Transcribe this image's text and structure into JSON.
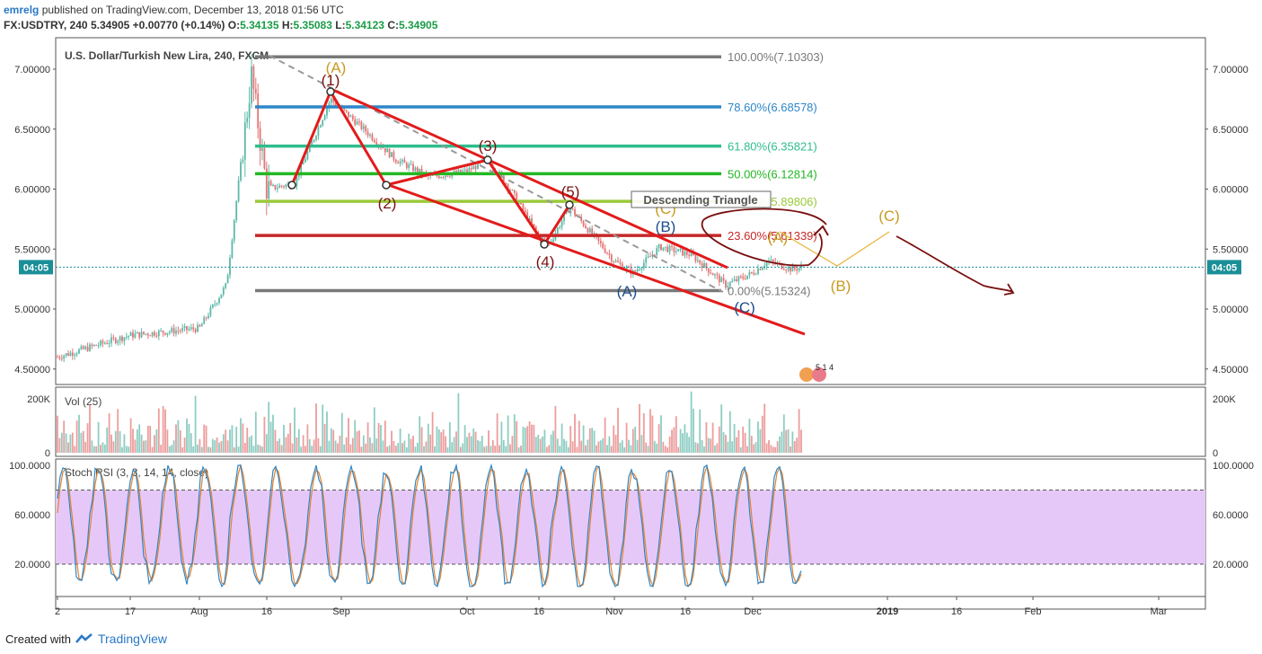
{
  "header": {
    "user": "emrelg",
    "published_text": "published on TradingView.com, December 13, 2018 01:56 UTC",
    "symbol": "FX:USDTRY, 240",
    "price": "5.34905",
    "change": "+0.00770 (+0.14%)",
    "o_label": "O:",
    "o_value": "5.34135",
    "h_label": "H:",
    "h_value": "5.35083",
    "l_label": "L:",
    "l_value": "5.34123",
    "c_label": "C:",
    "c_value": "5.34905"
  },
  "footer": {
    "created_with": "Created with",
    "brand": "TradingView"
  },
  "colors": {
    "up": "#5cb8a8",
    "down": "#e57373",
    "wave": "#e31b1b",
    "fib_0": "#787878",
    "fib_236": "#c62828",
    "fib_382": "#9bc93a",
    "fib_50": "#22b822",
    "fib_618": "#2ebd8e",
    "fib_786": "#2d86c8",
    "fib_100": "#787878",
    "stoch_k": "#2d86c8",
    "stoch_d": "#e8822a",
    "stoch_band": "#e6c8f8",
    "last_price": "#1b8f98"
  },
  "chart_data": [
    {
      "type": "candlestick",
      "title": "U.S. Dollar/Turkish New Lira, 240, FXCM",
      "ylim": [
        4.4,
        7.2
      ],
      "y_ticks": [
        "7.00000",
        "6.50000",
        "6.00000",
        "5.50000",
        "5.00000",
        "4.50000"
      ],
      "x_ticks": [
        "2",
        "17",
        "Aug",
        "16",
        "Sep",
        "Oct",
        "16",
        "Nov",
        "16",
        "Dec",
        "2019",
        "16",
        "Feb",
        "Mar"
      ],
      "last_price_label": "04:05",
      "series": [
        {
          "name": "USDTRY",
          "x": [
            "Jul 02",
            "Jul 17",
            "Aug 01",
            "Aug 08",
            "Aug 13",
            "Aug 16",
            "Aug 23",
            "Aug 30",
            "Sep 07",
            "Sep 14",
            "Sep 21",
            "Oct 01",
            "Oct 06",
            "Oct 12",
            "Oct 16",
            "Oct 22",
            "Oct 26",
            "Nov 01",
            "Nov 07",
            "Nov 12",
            "Nov 18",
            "Nov 26",
            "Dec 01",
            "Dec 05",
            "Dec 10",
            "Dec 13"
          ],
          "close": [
            4.6,
            4.78,
            4.84,
            5.2,
            6.95,
            6.0,
            6.05,
            6.75,
            6.5,
            6.25,
            6.1,
            6.15,
            6.25,
            6.0,
            5.6,
            5.55,
            5.85,
            5.4,
            5.3,
            5.52,
            5.45,
            5.2,
            5.3,
            5.4,
            5.33,
            5.349
          ]
        }
      ],
      "fib_levels": [
        {
          "label": "100.00%(7.10303)",
          "value": 7.10303
        },
        {
          "label": "78.60%(6.68578)",
          "value": 6.68578
        },
        {
          "label": "61.80%(6.35821)",
          "value": 6.35821
        },
        {
          "label": "50.00%(6.12814)",
          "value": 6.12814
        },
        {
          "label": "38.20%(5.89806)",
          "value": 5.89806
        },
        {
          "label": "23.60%(5.61339)",
          "value": 5.61339
        },
        {
          "label": "0.00%(5.15324)",
          "value": 5.15324
        }
      ],
      "wave_labels": [
        "(A)",
        "(1)",
        "(2)",
        "(3)",
        "(4)",
        "(5)",
        "(C)",
        "(B)",
        "(A)",
        "(C)",
        "(A)",
        "(B)",
        "(C)"
      ],
      "annotation": "Descending Triangle",
      "badge": "5 1 4"
    },
    {
      "type": "bar",
      "title": "Vol (25)",
      "y_ticks": [
        "200K",
        "0"
      ],
      "ylim": [
        0,
        260000
      ]
    },
    {
      "type": "line",
      "title": "Stoch RSI (3, 3, 14, 14, close)",
      "y_ticks": [
        "100.0000",
        "60.0000",
        "20.0000"
      ],
      "ylim": [
        0,
        100
      ],
      "band": [
        20,
        80
      ],
      "series": [
        {
          "name": "K"
        },
        {
          "name": "D"
        }
      ]
    }
  ]
}
